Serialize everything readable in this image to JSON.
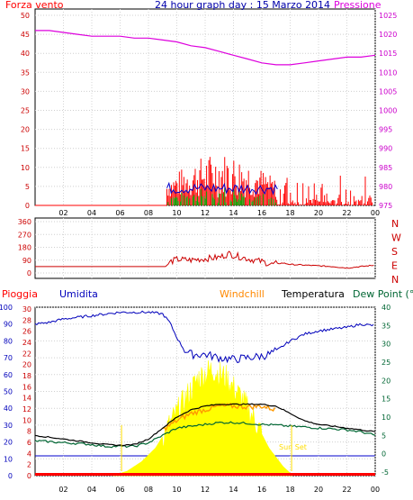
{
  "header": {
    "left_label": "Forza vento",
    "title": "24 hour graph day : 15 Marzo 2014",
    "right_label": "Pressione"
  },
  "colors": {
    "wind": "#ff0000",
    "wind_avg": "#0000cc",
    "wind_min": "#00aa00",
    "pressure": "#dd00dd",
    "direction": "#cc0000",
    "rain": "#ff0000",
    "humidity": "#0000bb",
    "windchill": "#ff9900",
    "temperature": "#000000",
    "dewpoint": "#006633",
    "solar": "#ffff00",
    "label_humidity": "#0000bb",
    "label_windchill": "#ff8800",
    "label_dewpoint": "#006633",
    "sunset": "#ffdd00"
  },
  "chart_data": [
    {
      "type": "line",
      "name": "wind-pressure",
      "x_ticks": [
        "02",
        "04",
        "06",
        "08",
        "10",
        "12",
        "14",
        "16",
        "18",
        "20",
        "22",
        "00"
      ],
      "y_left_ticks": [
        "0",
        "5",
        "10",
        "15",
        "20",
        "25",
        "30",
        "35",
        "40",
        "45",
        "50"
      ],
      "y_right_ticks": [
        "975",
        "980",
        "985",
        "990",
        "995",
        "1000",
        "1005",
        "1010",
        "1015",
        "1020",
        "1025"
      ],
      "ylim_left": [
        0,
        50
      ],
      "ylim_right": [
        975,
        1025
      ],
      "series": [
        {
          "name": "Pressione",
          "axis": "right",
          "x": [
            0,
            1,
            2,
            3,
            4,
            5,
            6,
            7,
            8,
            9,
            10,
            11,
            12,
            13,
            14,
            15,
            16,
            17,
            18,
            19,
            20,
            21,
            22,
            23,
            24
          ],
          "values": [
            1021,
            1021,
            1020.5,
            1020,
            1019.5,
            1019.5,
            1019.5,
            1019,
            1019,
            1018.5,
            1018,
            1017,
            1016.5,
            1015.5,
            1014.5,
            1013.5,
            1012.5,
            1012,
            1012,
            1012.5,
            1013,
            1013.5,
            1014,
            1014,
            1014.5
          ]
        }
      ],
      "gust_start_hour": 9.3,
      "gust_end_hour": 23.8,
      "gust_peak": 16
    },
    {
      "type": "line",
      "name": "wind-direction",
      "y_ticks": [
        "360",
        "270",
        "180",
        "90",
        "0"
      ],
      "ylim": [
        0,
        360
      ],
      "compass": [
        "N",
        "W",
        "S",
        "E",
        "N"
      ],
      "series": [
        {
          "name": "",
          "x": [
            0,
            2,
            4,
            6,
            8,
            9.2,
            9.6,
            10,
            11,
            12,
            13,
            13.7,
            14,
            15,
            16,
            16.7,
            17,
            17.5,
            18,
            19,
            20,
            21,
            22,
            23,
            24
          ],
          "values": [
            45,
            45,
            45,
            45,
            45,
            45,
            80,
            95,
            90,
            100,
            110,
            135,
            125,
            100,
            80,
            60,
            65,
            70,
            60,
            55,
            50,
            45,
            35,
            45,
            55
          ]
        }
      ]
    },
    {
      "type": "line",
      "name": "humidity-temperature",
      "labels": {
        "rain": "Pioggia",
        "humidity": "Umidita",
        "windchill": "Windchill",
        "temperature": "Temperatura",
        "dewpoint": "Dew Point (°C"
      },
      "y_hum_ticks": [
        "0",
        "10",
        "20",
        "30",
        "40",
        "50",
        "60",
        "70",
        "80",
        "90",
        "100"
      ],
      "y_rain_ticks": [
        "0",
        "2",
        "4",
        "6",
        "8",
        "10",
        "12",
        "14",
        "16",
        "18",
        "20",
        "22",
        "24",
        "26",
        "28",
        "30"
      ],
      "y_temp_ticks": [
        "-5",
        "0",
        "5",
        "10",
        "15",
        "20",
        "25",
        "30",
        "35",
        "40"
      ],
      "ylim_humidity": [
        0,
        100
      ],
      "ylim_temperature": [
        -6,
        40
      ],
      "sunset_label": "Sun Set",
      "series": [
        {
          "name": "Umidita",
          "x": [
            0,
            1,
            2,
            3,
            4,
            5,
            6,
            7,
            8,
            9,
            9.5,
            10,
            10.5,
            11,
            12,
            13,
            14,
            15,
            16,
            16.5,
            17,
            17.5,
            18,
            19,
            20,
            21,
            22,
            23,
            24
          ],
          "values": [
            90,
            91,
            93,
            94,
            95,
            96,
            97,
            97,
            97,
            96,
            91,
            82,
            75,
            72,
            72,
            70,
            69,
            70,
            71,
            72,
            74,
            77,
            80,
            84,
            86,
            87,
            88,
            90,
            89
          ]
        },
        {
          "name": "Temperatura",
          "x": [
            0,
            1,
            2,
            3,
            4,
            5,
            6,
            7,
            8,
            9,
            10,
            11,
            12,
            13,
            14,
            15,
            16,
            17,
            18,
            19,
            20,
            21,
            22,
            23,
            24
          ],
          "values": [
            5,
            4.5,
            4,
            3.5,
            3,
            2.5,
            2.3,
            2.5,
            4,
            7,
            10,
            12,
            13,
            13.5,
            13.5,
            13.5,
            13.5,
            13,
            11,
            9,
            8,
            7.5,
            7,
            6.5,
            6
          ]
        },
        {
          "name": "Windchill",
          "x": [
            9,
            10,
            11,
            12,
            13,
            14,
            15,
            16,
            17
          ],
          "values": [
            6.5,
            9,
            11,
            12,
            13,
            13,
            12.8,
            13,
            12
          ]
        },
        {
          "name": "Dew Point",
          "x": [
            0,
            1,
            2,
            3,
            4,
            5,
            6,
            7,
            8,
            9,
            10,
            11,
            12,
            13,
            14,
            15,
            16,
            17,
            18,
            19,
            20,
            21,
            22,
            23,
            24
          ],
          "values": [
            3.5,
            3.3,
            3,
            2.8,
            2.5,
            2,
            2,
            2,
            3,
            5,
            7,
            7.5,
            8,
            8.5,
            8.5,
            8.3,
            8,
            7.8,
            7.5,
            7.3,
            7,
            6.8,
            6.5,
            6,
            5
          ]
        },
        {
          "name": "Solar",
          "x": [
            5.5,
            6.5,
            7.5,
            8.5,
            9.5,
            10.5,
            11.5,
            12.5,
            13.5,
            14.5,
            15.5,
            16.5,
            17.5,
            18.2
          ],
          "values": [
            0,
            5,
            15,
            30,
            55,
            80,
            105,
            115,
            105,
            85,
            60,
            30,
            10,
            0
          ]
        }
      ]
    }
  ]
}
